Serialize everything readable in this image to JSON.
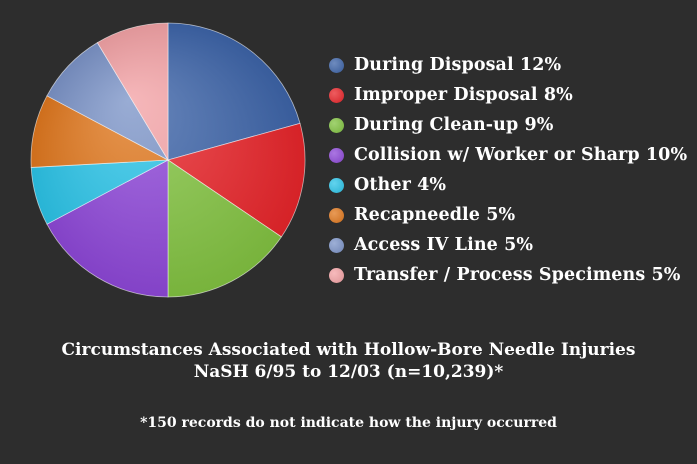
{
  "chart_data": {
    "type": "pie",
    "title": "Circumstances Associated with Hollow-Bore Needle Injuries",
    "subtitle": "NaSH 6/95 to 12/03 (n=10,239)*",
    "footnote": "*150 records do not indicate how the injury occurred",
    "legend_position": "right",
    "slices": [
      {
        "label": "During Disposal 12%",
        "value": 12,
        "color": "#3d64a8"
      },
      {
        "label": "Improper Disposal 8%",
        "value": 8,
        "color": "#e8252a"
      },
      {
        "label": "During Clean-up 9%",
        "value": 9,
        "color": "#82c341"
      },
      {
        "label": "Collision w/ Worker or Sharp 10%",
        "value": 10,
        "color": "#8e48d8"
      },
      {
        "label": "Other 4%",
        "value": 4,
        "color": "#2cc4e8"
      },
      {
        "label": "Recapneedle 5%",
        "value": 5,
        "color": "#e0781e"
      },
      {
        "label": "Access IV Line 5%",
        "value": 5,
        "color": "#7c94c8"
      },
      {
        "label": "Transfer / Process Specimens 5%",
        "value": 5,
        "color": "#f4a3a6"
      }
    ]
  }
}
